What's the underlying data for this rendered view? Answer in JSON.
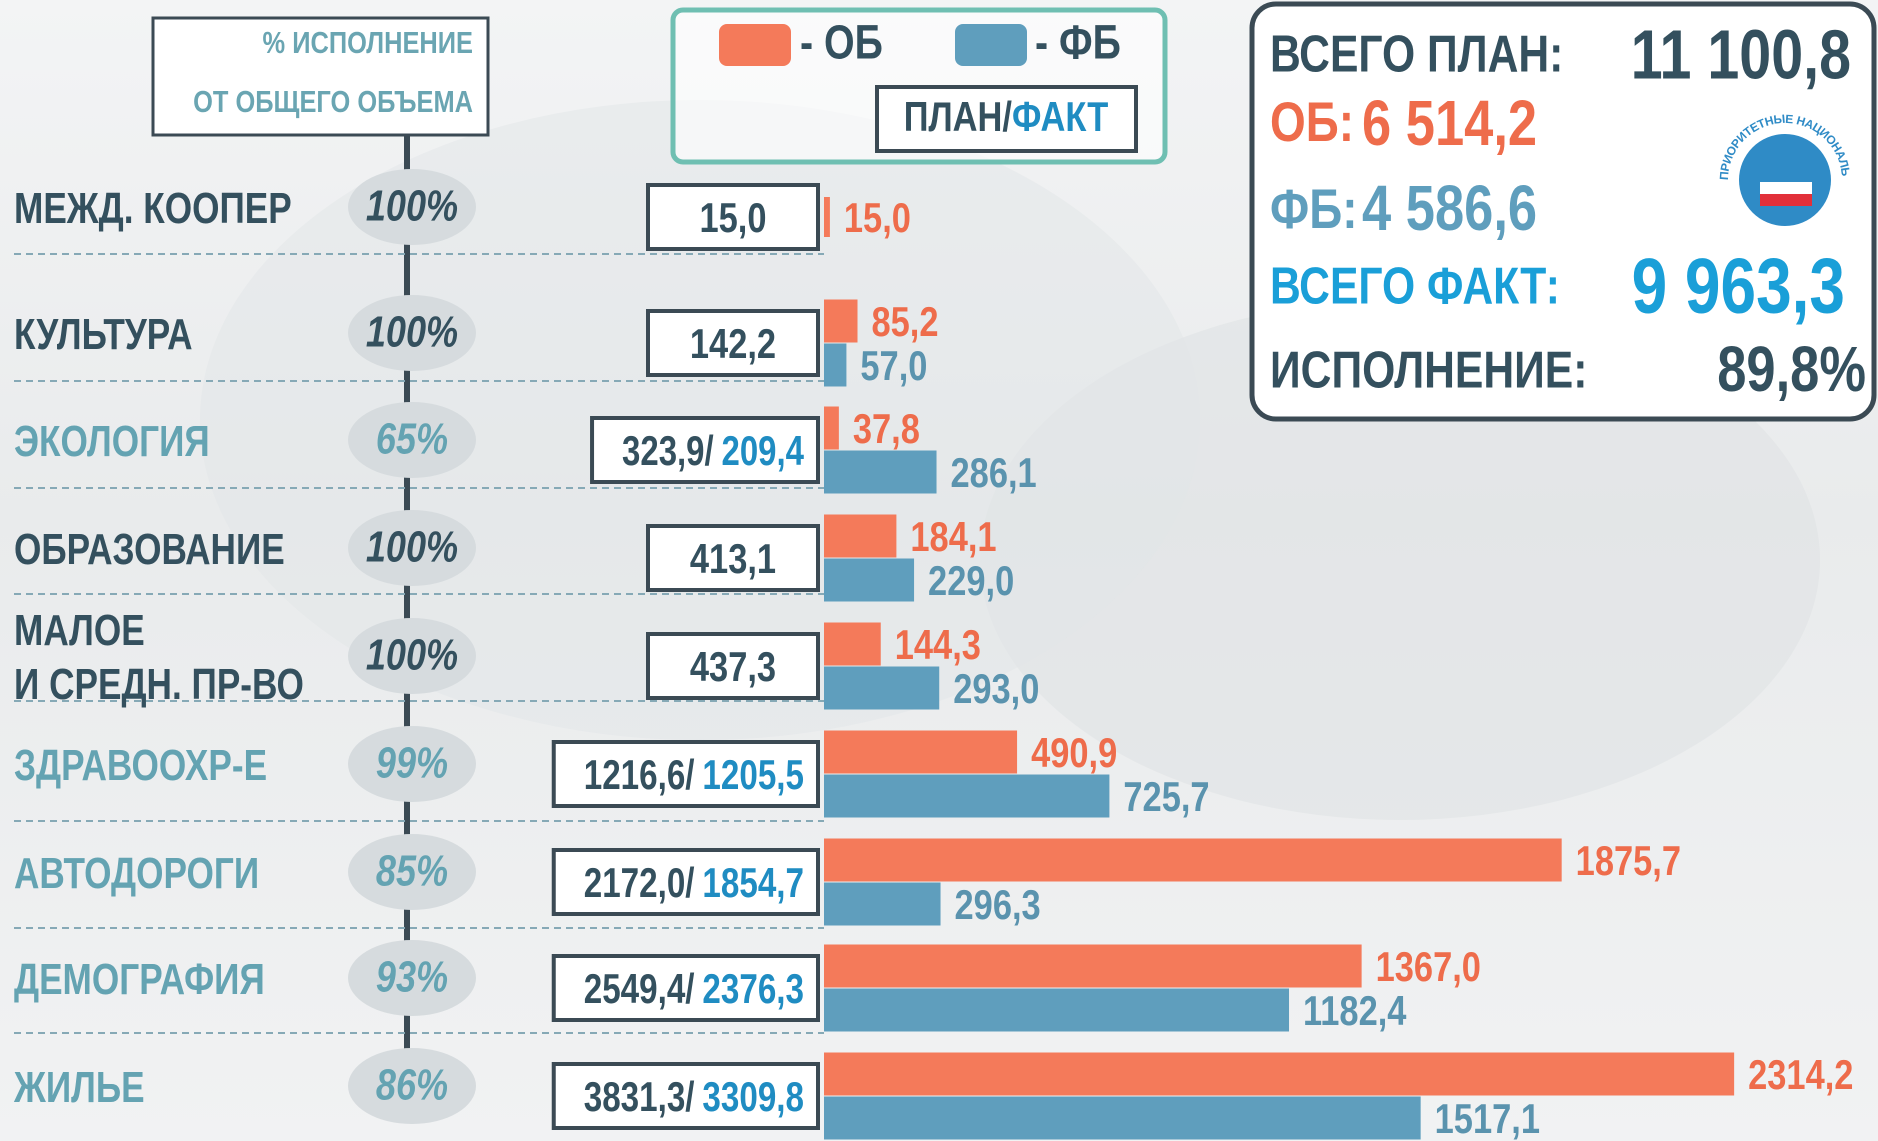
{
  "header": {
    "line1": "% ИСПОЛНЕНИЕ",
    "line2": "ОТ ОБЩЕГО ОБЪЕМА"
  },
  "legend": {
    "plan": "ПЛАН/",
    "fact": "ФАКТ"
  },
  "summary": {
    "plan_label": "ВСЕГО ПЛАН:",
    "plan_value": "11 100,8",
    "ob_label": "ОБ:",
    "ob_value": "6 514,2",
    "fb_label": "ФБ:",
    "fb_value": "4 586,6",
    "fact_label": "ВСЕГО ФАКТ:",
    "fact_value": "9 963,3",
    "exec_label": "ИСПОЛНЕНИЕ:",
    "exec_value": "89,8%",
    "logo_text": "ПРИОРИТЕТНЫЕ НАЦИОНАЛЬНЫЕ ПРОЕКТЫ"
  },
  "chart_data": {
    "type": "bar",
    "orientation": "horizontal",
    "categories": [
      "МЕЖД. КООПЕР",
      "КУЛЬТУРА",
      "ЭКОЛОГИЯ",
      "ОБРАЗОВАНИЕ",
      "МАЛОЕ\nИ СРЕДН. ПР-ВО",
      "ЗДРАВООХР-Е",
      "АВТОДОРОГИ",
      "ДЕМОГРАФИЯ",
      "ЖИЛЬЕ"
    ],
    "category_colors": [
      "#34505e",
      "#34505e",
      "#64a3b2",
      "#34505e",
      "#34505e",
      "#64a3b2",
      "#64a3b2",
      "#64a3b2",
      "#64a3b2"
    ],
    "completion": [
      "100%",
      "100%",
      "65%",
      "100%",
      "100%",
      "99%",
      "85%",
      "93%",
      "86%"
    ],
    "plan_fact": [
      [
        "15,0",
        null
      ],
      [
        "142,2",
        null
      ],
      [
        "323,9/",
        "209,4"
      ],
      [
        "413,1",
        null
      ],
      [
        "437,3",
        null
      ],
      [
        "1216,6/",
        "1205,5"
      ],
      [
        "2172,0/",
        "1854,7"
      ],
      [
        "2549,4/",
        "2376,3"
      ],
      [
        "3831,3/",
        "3309,8"
      ]
    ],
    "fact_color": "#1f8cc2",
    "xlim": [
      0,
      2680
    ],
    "series": [
      {
        "name": "- ОБ",
        "color": "#f47a5a",
        "label_color": "#ee6c4b",
        "values": [
          15.0,
          85.2,
          37.8,
          184.1,
          144.3,
          490.9,
          1875.7,
          1367.0,
          2314.2
        ],
        "value_labels": [
          "15,0",
          "85,2",
          "37,8",
          "184,1",
          "144,3",
          "490,9",
          "1875,7",
          "1367,0",
          "2314,2"
        ]
      },
      {
        "name": "- ФБ",
        "color": "#5f9ebd",
        "label_color": "#5a93ae",
        "values": [
          null,
          57.0,
          286.1,
          229.0,
          293.0,
          725.7,
          296.3,
          1182.4,
          1517.1
        ],
        "value_labels": [
          null,
          "57,0",
          "286,1",
          "229,0",
          "293,0",
          "725,7",
          "296,3",
          "1182,4",
          "1517,1"
        ]
      }
    ]
  }
}
